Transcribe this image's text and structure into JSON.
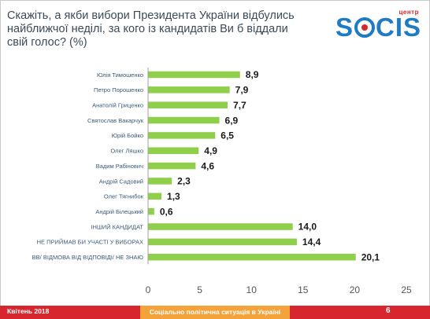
{
  "header": {
    "title": "Скажіть, а якби вибори Президента України відбулись найближчої неділі, за кого із кандидатів Ви б віддали свій голос? (%)"
  },
  "logo": {
    "center": "центр",
    "word_left": "S",
    "word_right": "CIS",
    "brand_color": "#1f7cc4",
    "accent_color": "#d8262e"
  },
  "chart_data": {
    "type": "bar",
    "orientation": "horizontal",
    "title": "",
    "xlabel": "",
    "ylabel": "",
    "xlim": [
      0,
      25
    ],
    "xticks": [
      0,
      5,
      10,
      15,
      20,
      25
    ],
    "categories": [
      "Юлія Тимошенко",
      "Петро Порошенко",
      "Анатолій Гриценко",
      "Святослав Вакарчук",
      "Юрій Бойко",
      "Олег Ляшко",
      "Вадим Рабінович",
      "Андрій Садовий",
      "Олег Тягнибок",
      "Андрій Білецький",
      "ІНШИЙ КАНДИДАТ",
      "НЕ ПРИЙМАВ БИ УЧАСТІ У ВИБОРАХ",
      "ВВ/ ВІДМОВА ВІД ВІДПОВІДІ/ НЕ ЗНАЮ"
    ],
    "values": [
      8.9,
      7.9,
      7.7,
      6.9,
      6.5,
      4.9,
      4.6,
      2.3,
      1.3,
      0.6,
      14.0,
      14.4,
      20.1
    ],
    "value_labels": [
      "8,9",
      "7,9",
      "7,7",
      "6,9",
      "6,5",
      "4,9",
      "4,6",
      "2,3",
      "1,3",
      "0,6",
      "14,0",
      "14,4",
      "20,1"
    ],
    "bar_color": "#8fcf4a",
    "grid": false,
    "legend": "none"
  },
  "footer": {
    "left": "Квітень 2018",
    "middle": "Соціально політична ситуація в Україні",
    "page": "6",
    "bar_color": "#d8262e",
    "middle_color": "#f4a23a"
  }
}
